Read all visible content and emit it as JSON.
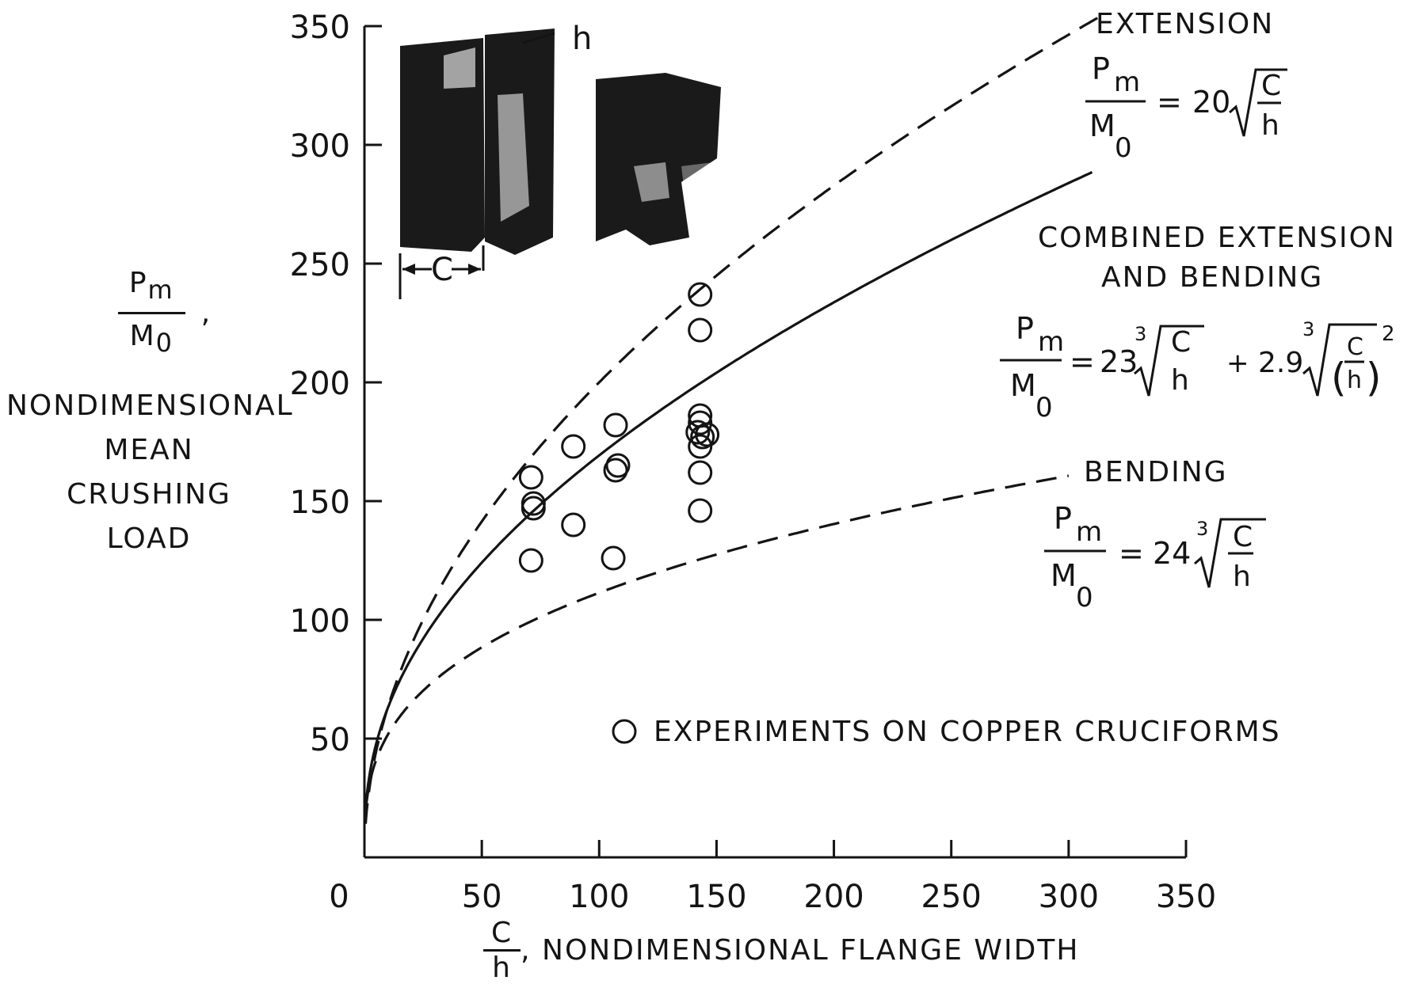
{
  "chart_data": {
    "type": "scatter",
    "ylabel": {
      "fraction_num": "P",
      "fraction_num_sub": "m",
      "fraction_den": "M",
      "fraction_den_sub": "0",
      "lines": [
        "NONDIMENSIONAL",
        "MEAN",
        "CRUSHING",
        "LOAD"
      ]
    },
    "xlabel": {
      "fraction_num": "C",
      "fraction_den": "h",
      "text": "NONDIMENSIONAL FLANGE WIDTH"
    },
    "xlim": [
      0,
      350
    ],
    "ylim": [
      0,
      350
    ],
    "x_ticks": [
      "0",
      "50",
      "100",
      "150",
      "200",
      "250",
      "300",
      "350"
    ],
    "y_ticks": [
      "50",
      "100",
      "150",
      "200",
      "250",
      "300",
      "350"
    ],
    "grid": false,
    "series": [
      {
        "name": "EXTENSION",
        "style": "dashed",
        "equation": {
          "lhs_num": "P",
          "lhs_num_sub": "m",
          "lhs_den": "M",
          "lhs_den_sub": "0",
          "coef": "20",
          "root": "",
          "rad_num": "C",
          "rad_den": "h"
        }
      },
      {
        "name": "COMBINED EXTENSION AND BENDING",
        "name_lines": [
          "COMBINED EXTENSION",
          "AND BENDING"
        ],
        "style": "solid",
        "equation": {
          "lhs_num": "P",
          "lhs_num_sub": "m",
          "lhs_den": "M",
          "lhs_den_sub": "0",
          "coef1": "23",
          "root1": "3",
          "rad1_num": "C",
          "rad1_den": "h",
          "plus": "+",
          "coef2": "2.9",
          "root2": "3",
          "rad2_num": "C",
          "rad2_den": "h",
          "exp": "2"
        }
      },
      {
        "name": "BENDING",
        "style": "dashed",
        "equation": {
          "lhs_num": "P",
          "lhs_num_sub": "m",
          "lhs_den": "M",
          "lhs_den_sub": "0",
          "coef": "24",
          "root": "3",
          "rad_num": "C",
          "rad_den": "h"
        }
      }
    ],
    "experiments": {
      "label": "EXPERIMENTS ON COPPER CRUCIFORMS",
      "marker": "open-circle",
      "points": [
        [
          71,
          160
        ],
        [
          72,
          149
        ],
        [
          72,
          147
        ],
        [
          71,
          125
        ],
        [
          89,
          173
        ],
        [
          89,
          140
        ],
        [
          107,
          182
        ],
        [
          107,
          163
        ],
        [
          108,
          165
        ],
        [
          106,
          126
        ],
        [
          143,
          237
        ],
        [
          143,
          222
        ],
        [
          143,
          186
        ],
        [
          143,
          183
        ],
        [
          142,
          179
        ],
        [
          144,
          177
        ],
        [
          146,
          178
        ],
        [
          143,
          173
        ],
        [
          143,
          162
        ],
        [
          143,
          146
        ]
      ]
    },
    "inset": {
      "description_text": "",
      "labels": [
        "h",
        "C"
      ]
    }
  }
}
